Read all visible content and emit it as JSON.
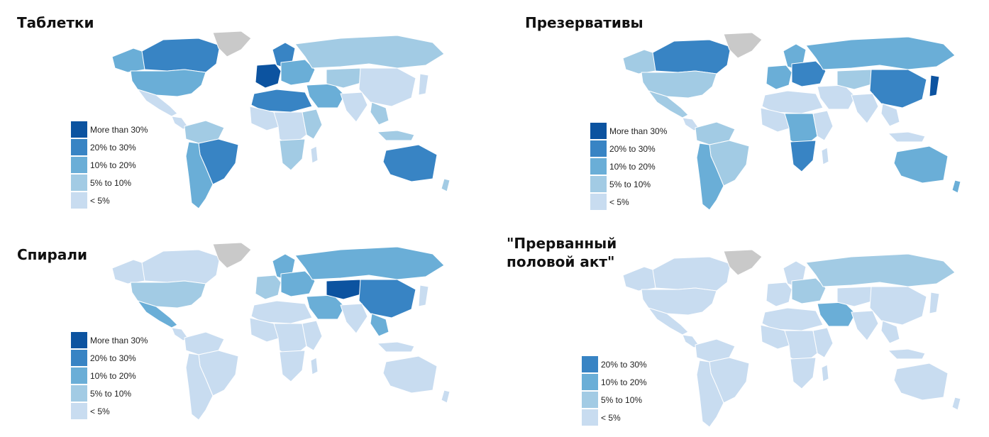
{
  "colors": {
    "gt30": "#0c53a0",
    "c20_30": "#3884c4",
    "c10_20": "#6aaed7",
    "c5_10": "#a2cbe4",
    "lt5": "#c8dcf0",
    "nodata": "#c9c9c9",
    "border": "#ffffff"
  },
  "legend_labels": {
    "gt30": "More than 30%",
    "c20_30": "20% to 30%",
    "c10_20": "10% to 20%",
    "c5_10": "5% to 10%",
    "lt5": "< 5%"
  },
  "maps": [
    {
      "id": "pills",
      "title": "Таблетки",
      "legend_keys": [
        "gt30",
        "c20_30",
        "c10_20",
        "c5_10",
        "lt5"
      ],
      "regions": {
        "canada": "c20_30",
        "usa": "c10_20",
        "alaska": "c10_20",
        "greenland": "nodata",
        "mexico": "lt5",
        "central_america": "lt5",
        "south_america_north": "c5_10",
        "brazil": "c20_30",
        "argentina_chile": "c10_20",
        "west_europe": "gt30",
        "east_europe": "c10_20",
        "scandinavia": "c20_30",
        "russia": "c5_10",
        "north_africa": "c20_30",
        "west_africa": "lt5",
        "central_africa": "lt5",
        "east_africa": "c5_10",
        "south_africa": "c5_10",
        "madagascar": "lt5",
        "middle_east": "c10_20",
        "central_asia": "c5_10",
        "china_mongolia": "lt5",
        "india": "lt5",
        "se_asia": "c5_10",
        "indonesia": "c5_10",
        "japan": "lt5",
        "australia": "c20_30",
        "nz": "c5_10"
      }
    },
    {
      "id": "condoms",
      "title": "Презервативы",
      "legend_keys": [
        "gt30",
        "c20_30",
        "c10_20",
        "c5_10",
        "lt5"
      ],
      "regions": {
        "canada": "c20_30",
        "usa": "c5_10",
        "alaska": "c5_10",
        "greenland": "nodata",
        "mexico": "c5_10",
        "central_america": "lt5",
        "south_america_north": "c5_10",
        "brazil": "c5_10",
        "argentina_chile": "c10_20",
        "west_europe": "c10_20",
        "east_europe": "c20_30",
        "scandinavia": "c10_20",
        "russia": "c10_20",
        "north_africa": "lt5",
        "west_africa": "lt5",
        "central_africa": "c10_20",
        "east_africa": "lt5",
        "south_africa": "c20_30",
        "madagascar": "lt5",
        "middle_east": "lt5",
        "central_asia": "c5_10",
        "china_mongolia": "c20_30",
        "india": "lt5",
        "se_asia": "lt5",
        "indonesia": "lt5",
        "japan": "gt30",
        "australia": "c10_20",
        "nz": "c10_20"
      }
    },
    {
      "id": "iud",
      "title": "Спирали",
      "legend_keys": [
        "gt30",
        "c20_30",
        "c10_20",
        "c5_10",
        "lt5"
      ],
      "regions": {
        "canada": "lt5",
        "usa": "c5_10",
        "alaska": "lt5",
        "greenland": "nodata",
        "mexico": "c10_20",
        "central_america": "lt5",
        "south_america_north": "lt5",
        "brazil": "lt5",
        "argentina_chile": "lt5",
        "west_europe": "c5_10",
        "east_europe": "c10_20",
        "scandinavia": "c10_20",
        "russia": "c10_20",
        "north_africa": "lt5",
        "west_africa": "lt5",
        "central_africa": "lt5",
        "east_africa": "lt5",
        "south_africa": "lt5",
        "madagascar": "lt5",
        "middle_east": "c10_20",
        "central_asia": "gt30",
        "china_mongolia": "c20_30",
        "india": "lt5",
        "se_asia": "c10_20",
        "indonesia": "lt5",
        "japan": "lt5",
        "australia": "lt5",
        "nz": "lt5"
      }
    },
    {
      "id": "withdrawal",
      "title": "\"Прерванный\nполовой акт\"",
      "legend_keys": [
        "c20_30",
        "c10_20",
        "c5_10",
        "lt5"
      ],
      "regions": {
        "canada": "lt5",
        "usa": "lt5",
        "alaska": "lt5",
        "greenland": "nodata",
        "mexico": "lt5",
        "central_america": "lt5",
        "south_america_north": "lt5",
        "brazil": "lt5",
        "argentina_chile": "lt5",
        "west_europe": "lt5",
        "east_europe": "c5_10",
        "scandinavia": "lt5",
        "russia": "c5_10",
        "north_africa": "lt5",
        "west_africa": "lt5",
        "central_africa": "lt5",
        "east_africa": "lt5",
        "south_africa": "lt5",
        "madagascar": "lt5",
        "middle_east": "c10_20",
        "central_asia": "lt5",
        "china_mongolia": "lt5",
        "india": "lt5",
        "se_asia": "lt5",
        "indonesia": "lt5",
        "japan": "lt5",
        "australia": "lt5",
        "nz": "lt5"
      }
    }
  ]
}
